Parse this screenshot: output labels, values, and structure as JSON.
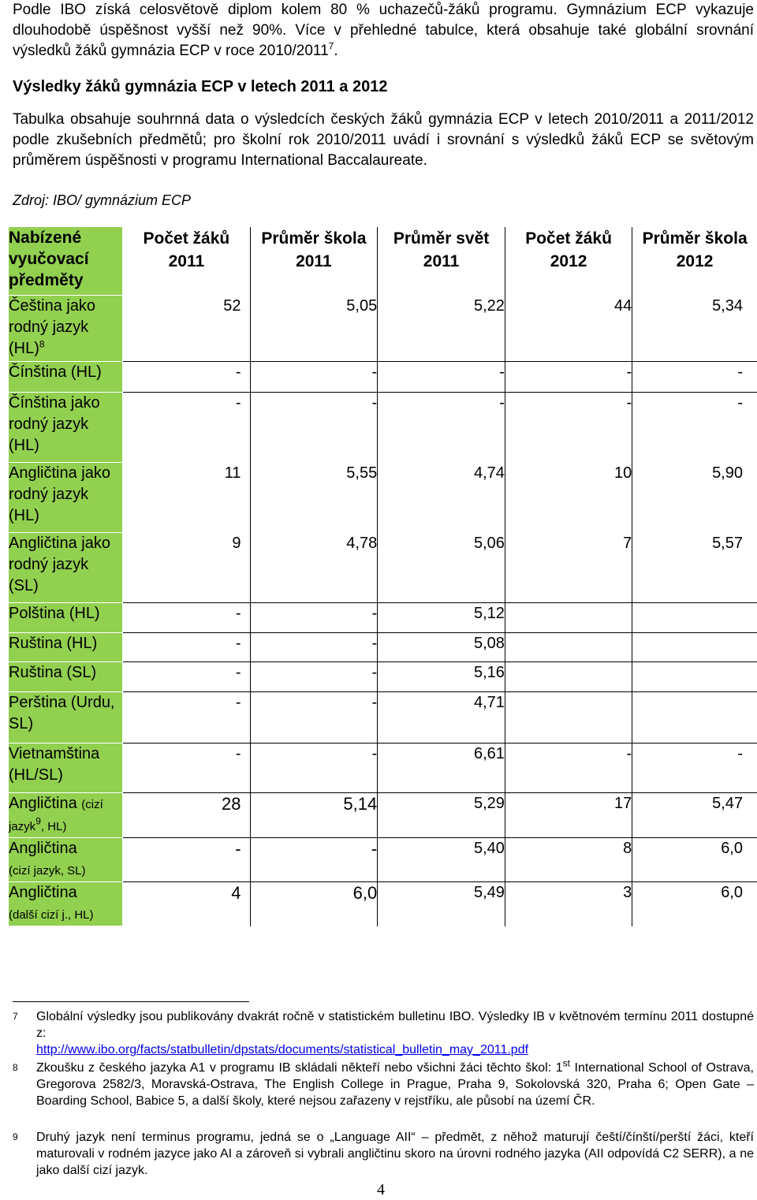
{
  "intro": "Podle IBO získá celosvětově diplom kolem 80 % uchazečů-žáků programu. Gymnázium ECP vykazuje dlouhodobě úspěšnost vyšší než 90%. Více v přehledné tabulce, která obsahuje také globální srovnání výsledků žáků gymnázia ECP v roce 2010/2011",
  "intro_fn": "7",
  "heading": "Výsledky žáků gymnázia ECP v letech 2011 a 2012",
  "description": "Tabulka obsahuje souhrnná data o výsledcích českých žáků gymnázia ECP v letech 2010/2011 a 2011/2012 podle zkušebních předmětů; pro školní rok 2010/2011 uvádí i srovnání s výsledků žáků ECP se světovým průměrem úspěšnosti v programu International Baccalaureate.",
  "source": "Zdroj: IBO/ gymnázium ECP",
  "table": {
    "headers": [
      "Nabízené vyučovací předměty",
      "Počet žáků 2011",
      "Průměr škola 2011",
      "Průměr svět 2011",
      "Počet žáků 2012",
      "Průměr škola 2012"
    ],
    "rows": [
      {
        "subject": "Čeština jako rodný jazyk (HL)",
        "sup": "8",
        "values": [
          "52",
          "5,05",
          "5,22",
          "44",
          "5,34"
        ]
      },
      {
        "subject": "Čínština (HL)",
        "values": [
          "-",
          "-",
          "-",
          "-",
          "-"
        ]
      },
      {
        "subject": "Čínština jako rodný jazyk (HL)",
        "values": [
          "-",
          "-",
          "-",
          "-",
          "-"
        ]
      },
      {
        "subject": "Angličtina jako rodný jazyk (HL)",
        "values": [
          "11",
          "5,55",
          "4,74",
          "10",
          "5,90"
        ]
      },
      {
        "subject": "Angličtina jako rodný jazyk (SL)",
        "values": [
          "9",
          "4,78",
          "5,06",
          "7",
          "5,57"
        ]
      },
      {
        "subject": "Polština (HL)",
        "values": [
          "-",
          "-",
          "5,12",
          "",
          ""
        ]
      },
      {
        "subject": "Ruština (HL)",
        "values": [
          "-",
          "-",
          "5,08",
          "",
          ""
        ]
      },
      {
        "subject": "Ruština (SL)",
        "values": [
          "-",
          "-",
          "5,16",
          "",
          ""
        ]
      },
      {
        "subject": "Perština (Urdu, SL)",
        "values": [
          "-",
          "-",
          "4,71",
          "",
          ""
        ]
      },
      {
        "subject": "Vietnamština (HL/SL)",
        "values": [
          "-",
          "-",
          "6,61",
          "-",
          "-"
        ]
      },
      {
        "subject": "Angličtina",
        "subject_small_a": "(cizí",
        "subject_small_b": "jazyk",
        "sup": "9",
        "subject_small_c": ", HL)",
        "values": [
          "28",
          "5,14",
          "5,29",
          "17",
          "5,47"
        ]
      },
      {
        "subject": "Angličtina",
        "subject_small": "(cizí jazyk, SL)",
        "values": [
          "-",
          "-",
          "5,40",
          "8",
          "6,0"
        ]
      },
      {
        "subject": "Angličtina",
        "subject_small": "(další cizí j., HL)",
        "values": [
          "4",
          "6,0",
          "5,49",
          "3",
          "6,0"
        ]
      }
    ]
  },
  "footnotes": [
    {
      "num": "7",
      "text": "Globální výsledky jsou publikovány dvakrát ročně v statistickém bulletinu IBO. Výsledky IB v květnovém termínu 2011 dostupné z:",
      "link": "http://www.ibo.org/facts/statbulletin/dpstats/documents/statistical_bulletin_may_2011.pdf"
    },
    {
      "num": "8",
      "text_a": "Zkoušku z českého jazyka A1 v programu IB skládali někteří nebo všichni žáci těchto škol: 1",
      "sup": "st",
      "text_b": " International School of Ostrava, Gregorova 2582/3, Moravská-Ostrava, The English College in Prague, Praha 9, Sokolovská 320, Praha 6; Open Gate – Boarding School, Babice 5, a další školy, které nejsou zařazeny v rejstříku, ale působí na území ČR."
    },
    {
      "num": "9",
      "text": "Druhý jazyk není terminus programu, jedná se o „Language AII“ – předmět, z něhož maturují čeští/čínští/perští žáci, kteří maturovali v rodném jazyce jako AI a zároveň si vybrali angličtinu skoro na úrovni rodného jazyka (AII odpovídá C2 SERR), a ne jako další cizí jazyk."
    }
  ],
  "page_number": "4"
}
